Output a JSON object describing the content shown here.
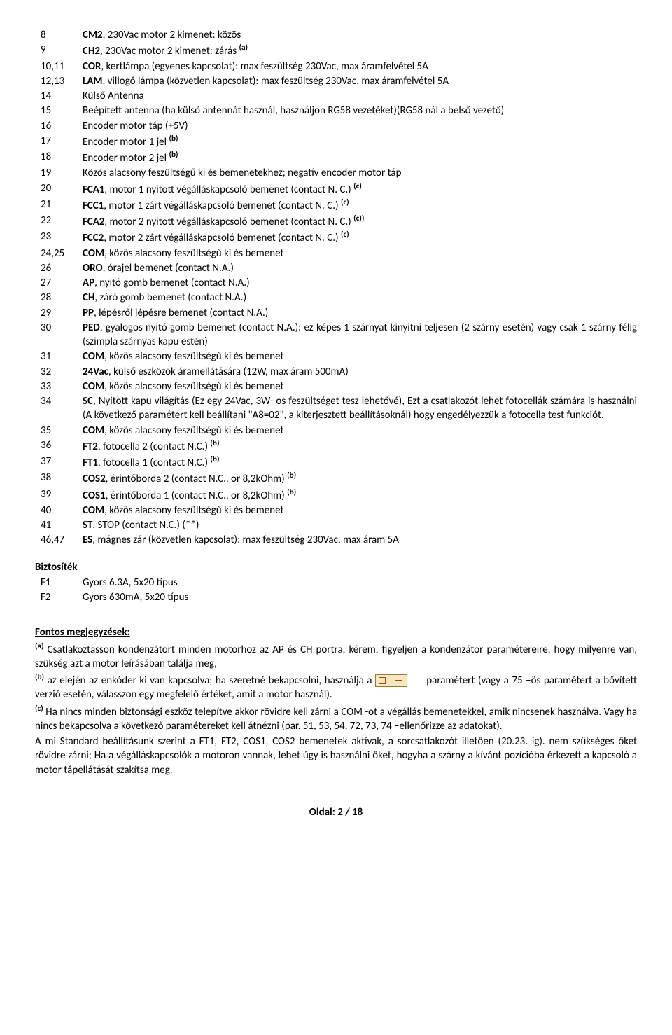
{
  "rows": [
    {
      "n": "8",
      "bold": "CM2",
      "text": ", 230Vac motor 2 kimenet: közös"
    },
    {
      "n": "9",
      "bold": "CH2",
      "text": ", 230Vac motor 2 kimenet: zárás ",
      "sup": "(a)"
    },
    {
      "n": "10,11",
      "bold": "COR",
      "text": ", kertlámpa (egyenes kapcsolat): max feszültség 230Vac, max áramfelvétel 5A"
    },
    {
      "n": "12,13",
      "bold": "LAM",
      "text": ", villogó lámpa (közvetlen kapcsolat): max feszültség 230Vac, max áramfelvétel 5A"
    },
    {
      "n": "14",
      "bold": "",
      "text": "Külső Antenna"
    },
    {
      "n": "15",
      "bold": "",
      "text": "Beépített antenna (ha külső antennát használ, használjon RG58 vezetéket)(RG58 nál a belső vezető)"
    },
    {
      "n": "16",
      "bold": "",
      "text": "Encoder motor táp (+5V)"
    },
    {
      "n": "17",
      "bold": "",
      "text": "Encoder motor 1 jel ",
      "sup": "(b)"
    },
    {
      "n": "18",
      "bold": "",
      "text": "Encoder motor 2 jel ",
      "sup": "(b)"
    },
    {
      "n": "19",
      "bold": "",
      "text": "Közös alacsony feszültségű ki és bemenetekhez; negatív encoder motor táp"
    },
    {
      "n": "20",
      "bold": "FCA1",
      "text": ", motor 1 nyitott végálláskapcsoló bemenet (contact N. C.) ",
      "sup": "(c)"
    },
    {
      "n": "21",
      "bold": "FCC1",
      "text": ", motor 1 zárt végálláskapcsoló bemenet (contact N. C.) ",
      "sup": "(c)"
    },
    {
      "n": "22",
      "bold": "FCA2",
      "text": ", motor 2 nyitott végálláskapcsoló bemenet (contact N. C.) ",
      "sup": "(c))"
    },
    {
      "n": "23",
      "bold": "FCC2",
      "text": ", motor 2 zárt végálláskapcsoló bemenet (contact N. C.) ",
      "sup": "(c)"
    },
    {
      "n": "24,25",
      "bold": "COM",
      "text": ", közös alacsony feszültségű ki és bemenet"
    },
    {
      "n": "26",
      "bold": "ORO",
      "text": ", órajel bemenet (contact N.A.)"
    },
    {
      "n": "27",
      "bold": "AP",
      "text": ", nyitó gomb bemenet (contact N.A.)"
    },
    {
      "n": "28",
      "bold": "CH",
      "text": ", záró gomb bemenet (contact N.A.)"
    },
    {
      "n": "29",
      "bold": "PP",
      "text": ", lépésről lépésre bemenet (contact N.A.)"
    },
    {
      "n": "30",
      "bold": "PED",
      "text": ", gyalogos nyitó gomb bemenet (contact N.A.): ez képes 1 szárnyat kinyitni teljesen (2 szárny esetén) vagy csak 1 szárny félig (szimpla szárnyas kapu estén)"
    },
    {
      "n": "31",
      "bold": "COM",
      "text": ", közös alacsony feszültségű ki és bemenet"
    },
    {
      "n": "32",
      "bold": "24Vac",
      "text": ", külső eszközök áramellátására (12W, max áram 500mA)"
    },
    {
      "n": "33",
      "bold": "COM",
      "text": ", közös alacsony feszültségű ki és bemenet"
    },
    {
      "n": "34",
      "bold": "SC",
      "text": ", Nyitott kapu világítás (Ez egy 24Vac, 3W- os feszültséget tesz lehetővé), Ezt a csatlakozót lehet fotocellák számára is használni (A következő paramétert kell beállítani \"A8=02\", a kiterjesztett beállításoknál) hogy engedélyezzük a fotocella test funkciót."
    },
    {
      "n": "35",
      "bold": "COM",
      "text": ", közös alacsony feszültségű ki és bemenet"
    },
    {
      "n": "36",
      "bold": "FT2",
      "text": ", fotocella 2 (contact N.C.) ",
      "sup": "(b)"
    },
    {
      "n": "37",
      "bold": "FT1",
      "text": ", fotocella 1 (contact N.C.) ",
      "sup": "(b)"
    },
    {
      "n": "38",
      "bold": "COS2",
      "text": ", érintőborda 2 (contact N.C., or 8,2kOhm) ",
      "sup": "(b)"
    },
    {
      "n": "39",
      "bold": "COS1",
      "text": ", érintőborda 1 (contact N.C., or 8,2kOhm) ",
      "sup": "(b)"
    },
    {
      "n": "40",
      "bold": "COM",
      "text": ", közös alacsony feszültségű ki és bemenet"
    },
    {
      "n": "41",
      "bold": "ST",
      "text": ", STOP (contact N.C.) (**)"
    },
    {
      "n": "46,47",
      "bold": "ES",
      "text": ", mágnes zár (közvetlen kapcsolat): max feszültség 230Vac, max áram 5A"
    }
  ],
  "fuse_title": "Biztosíték",
  "fuses": [
    {
      "n": "F1",
      "text": "Gyors 6.3A, 5x20 típus"
    },
    {
      "n": "F2",
      "text": "Gyors 630mA, 5x20 típus"
    }
  ],
  "notes_title": "Fontos megjegyzések:",
  "note_a_pre": "(a)",
  "note_a": " Csatlakoztasson kondenzátort minden motorhoz az AP és CH portra, kérem, figyeljen a kondenzátor paramétereire, hogy milyenre van, szükség azt a motor leírásában találja meg,",
  "note_b_pre": "(b)",
  "note_b_1": " az elején az enkóder ki van kapcsolva; ha szeretné bekapcsolni, használja a ",
  "note_b_2": " paramétert (vagy a 75 –ös paramétert a bővített verzió esetén, válasszon egy megfelelő értéket, amit a motor használ).",
  "note_c_pre": "(c)",
  "note_c": " Ha nincs minden biztonsági eszköz telepítve akkor rövidre kell zárni a  COM -ot a végállás bemenetekkel, amik nincsenek használva. Vagy ha nincs bekapcsolva a következő paramétereket kell átnézni (par. 51, 53, 54, 72, 73, 74 –ellenőrizze az adatokat).",
  "note_std": "A mi Standard beállításunk szerint a FT1, FT2, COS1, COS2 bemenetek aktívak, a sorcsatlakozót illetően (20.23. ig). nem szükséges őket rövidre zárni; Ha a végálláskapcsolók a motoron vannak, lehet úgy is használni őket, hogyha a szárny a kívánt pozícióba érkezett a kapcsoló a motor tápellátását szakítsa meg.",
  "pager": "Oldal:   2 / 18"
}
